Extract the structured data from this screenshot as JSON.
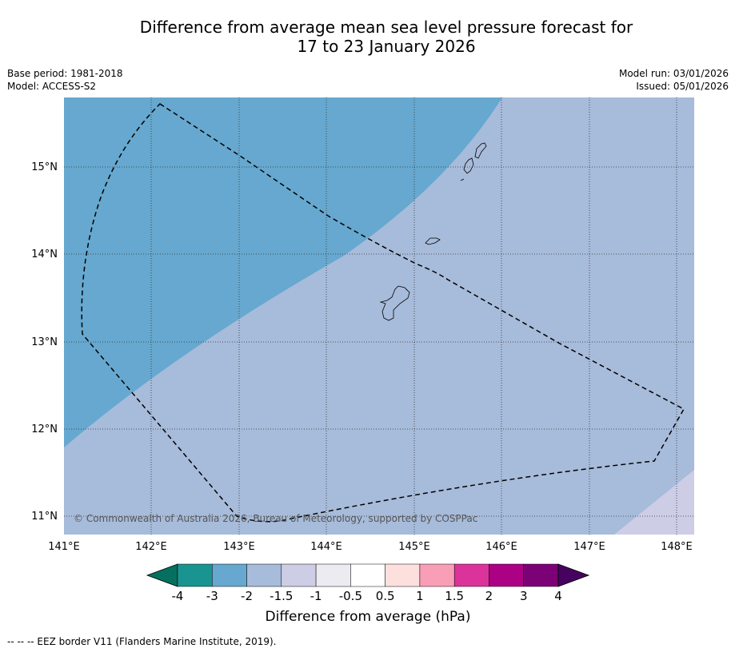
{
  "title_line1": "Difference from average mean sea level pressure forecast for",
  "title_line2": "17 to 23 January 2026",
  "meta": {
    "base_period": "Base period: 1981-2018",
    "model": "Model: ACCESS-S2",
    "model_run": "Model run: 03/01/2026",
    "issued": "Issued: 05/01/2026"
  },
  "map": {
    "lon_ticks": [
      "141°E",
      "142°E",
      "143°E",
      "144°E",
      "145°E",
      "146°E",
      "147°E",
      "148°E"
    ],
    "lat_ticks": [
      "15°N",
      "14°N",
      "13°N",
      "12°N",
      "11°N"
    ],
    "copyright": "© Commonwealth of Australia 2026, Bureau of Meteorology, supported by COSPPac",
    "fill_colors": {
      "band_minus2_to_minus3": "#66a8cf",
      "band_minus1_5_to_minus2": "#a7bbda",
      "band_minus1_to_minus1_5": "#cdcde6"
    }
  },
  "colorbar": {
    "label": "Difference from average (hPa)",
    "tick_labels": [
      "-4",
      "-3",
      "-2",
      "-1.5",
      "-1",
      "-0.5",
      "0.5",
      "1",
      "1.5",
      "2",
      "3",
      "4"
    ],
    "under_color": "#05705f",
    "over_color": "#47025f",
    "segment_colors": [
      "#1a9491",
      "#66a8cf",
      "#a7bbda",
      "#cdcde6",
      "#ecebf1",
      "#ffffff",
      "#fde0de",
      "#f99eb7",
      "#dc339a",
      "#ac0185",
      "#7c0177"
    ]
  },
  "footnote": "--  --  -- EEZ border V11 (Flanders Marine Institute, 2019)."
}
